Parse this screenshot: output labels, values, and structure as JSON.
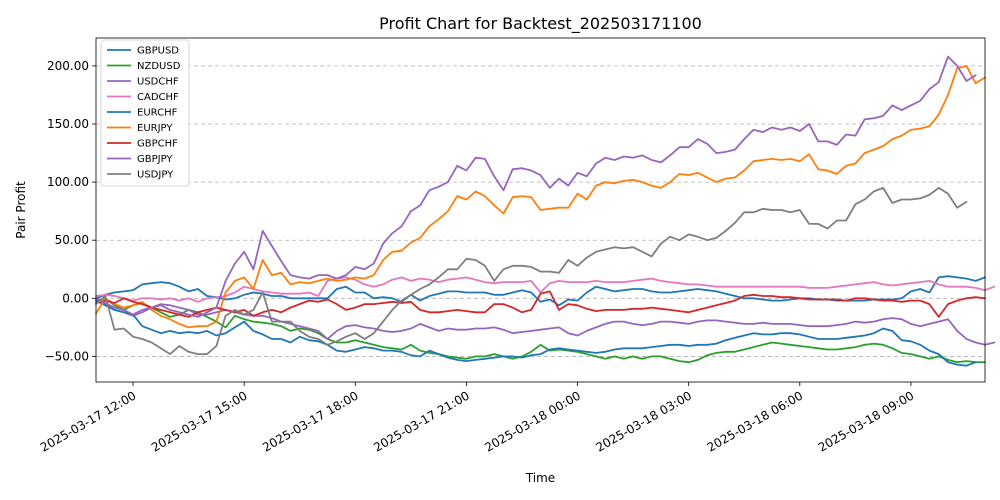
{
  "chart_data": {
    "type": "line",
    "title": "Profit Chart for Backtest_202503171100",
    "xlabel": "Time",
    "ylabel": "Pair Profit",
    "ylim": [
      -72,
      224
    ],
    "xlim": [
      -4,
      92
    ],
    "grid": "horizontal dashed",
    "legend_position": "top-left",
    "xticks": [
      {
        "x": 0,
        "label": "2025-03-17 12:00"
      },
      {
        "x": 12,
        "label": "2025-03-17 15:00"
      },
      {
        "x": 24,
        "label": "2025-03-17 18:00"
      },
      {
        "x": 36,
        "label": "2025-03-17 21:00"
      },
      {
        "x": 48,
        "label": "2025-03-18 00:00"
      },
      {
        "x": 60,
        "label": "2025-03-18 03:00"
      },
      {
        "x": 72,
        "label": "2025-03-18 06:00"
      },
      {
        "x": 84,
        "label": "2025-03-18 09:00"
      }
    ],
    "yticks": [
      {
        "y": -50,
        "label": "−50.00"
      },
      {
        "y": 0,
        "label": "0.00"
      },
      {
        "y": 50,
        "label": "50.00"
      },
      {
        "y": 100,
        "label": "100.00"
      },
      {
        "y": 150,
        "label": "150.00"
      },
      {
        "y": 200,
        "label": "200.00"
      }
    ],
    "x_start": -4,
    "series": [
      {
        "name": "GBPUSD",
        "color": "#1f77b4",
        "values": [
          0,
          3,
          5,
          6,
          7,
          12,
          13,
          14,
          13,
          10,
          6,
          8,
          2,
          1,
          -1,
          0,
          3,
          5,
          4,
          2,
          2,
          0,
          0,
          0,
          0,
          0,
          8,
          10,
          5,
          5,
          0,
          1,
          0,
          -3,
          3,
          -2,
          2,
          4,
          6,
          6,
          5,
          5,
          5,
          3,
          3,
          5,
          7,
          5,
          -3,
          -1,
          -6,
          -1,
          -2,
          5,
          10,
          8,
          6,
          7,
          8,
          8,
          6,
          5,
          5,
          6,
          7,
          8,
          7,
          6,
          4,
          2,
          0,
          0,
          -1,
          -2,
          -2,
          -1,
          0,
          0,
          -1,
          -1,
          -2,
          -2,
          -2,
          -2,
          -1,
          -1,
          -1,
          0,
          6,
          8,
          5,
          18,
          19,
          18,
          17,
          15,
          18
        ],
        "comment": ""
      },
      {
        "name": "NZDUSD",
        "color": "#2ca02c",
        "values": [
          -2,
          0,
          -6,
          -10,
          -6,
          -4,
          -8,
          -12,
          -16,
          -14,
          -10,
          -12,
          -16,
          -20,
          -25,
          -15,
          -18,
          -20,
          -21,
          -22,
          -24,
          -28,
          -26,
          -27,
          -30,
          -35,
          -38,
          -38,
          -36,
          -38,
          -40,
          -42,
          -43,
          -44,
          -40,
          -45,
          -47,
          -48,
          -50,
          -51,
          -52,
          -50,
          -50,
          -48,
          -50,
          -52,
          -50,
          -46,
          -40,
          -45,
          -44,
          -45,
          -46,
          -48,
          -50,
          -52,
          -50,
          -52,
          -50,
          -52,
          -50,
          -50,
          -52,
          -54,
          -55,
          -53,
          -49,
          -47,
          -46,
          -46,
          -44,
          -42,
          -40,
          -38,
          -39,
          -40,
          -41,
          -42,
          -43,
          -44,
          -44,
          -43,
          -42,
          -40,
          -39,
          -40,
          -43,
          -47,
          -48,
          -50,
          -52,
          -50,
          -53,
          -55,
          -54,
          -55,
          -55
        ]
      },
      {
        "name": "USDCHF",
        "color": "#9467bd",
        "values": [
          0,
          -5,
          -10,
          -12,
          -15,
          -12,
          -8,
          -5,
          -6,
          -8,
          -10,
          -14,
          -14,
          -12,
          -10,
          -12,
          -14,
          -15,
          -15,
          -17,
          -20,
          -22,
          -24,
          -26,
          -28,
          -35,
          -28,
          -24,
          -23,
          -25,
          -26,
          -28,
          -29,
          -28,
          -26,
          -22,
          -25,
          -28,
          -26,
          -27,
          -27,
          -26,
          -26,
          -25,
          -27,
          -30,
          -29,
          -28,
          -27,
          -26,
          -25,
          -30,
          -32,
          -28,
          -25,
          -22,
          -20,
          -20,
          -22,
          -23,
          -22,
          -20,
          -20,
          -21,
          -22,
          -20,
          -19,
          -19,
          -20,
          -21,
          -22,
          -22,
          -21,
          -22,
          -22,
          -22,
          -23,
          -24,
          -24,
          -24,
          -23,
          -22,
          -20,
          -21,
          -20,
          -18,
          -17,
          -18,
          -22,
          -24,
          -22,
          -20,
          -18,
          -28,
          -35,
          -38,
          -40,
          -38
        ]
      },
      {
        "name": "CADCHF",
        "color": "#e377c2",
        "values": [
          2,
          3,
          2,
          0,
          -2,
          0,
          0,
          -1,
          0,
          -2,
          0,
          -3,
          0,
          1,
          2,
          5,
          10,
          8,
          6,
          5,
          4,
          4,
          4,
          5,
          2,
          15,
          17,
          18,
          16,
          12,
          10,
          12,
          16,
          18,
          15,
          17,
          16,
          14,
          16,
          17,
          18,
          16,
          14,
          13,
          14,
          14,
          14,
          15,
          5,
          13,
          15,
          14,
          14,
          14,
          15,
          14,
          14,
          14,
          15,
          16,
          17,
          15,
          14,
          13,
          12,
          12,
          11,
          10,
          10,
          10,
          10,
          10,
          10,
          10,
          10,
          10,
          10,
          9,
          9,
          9,
          10,
          11,
          12,
          13,
          14,
          12,
          11,
          12,
          13,
          14,
          15,
          12,
          10,
          10,
          10,
          9,
          7,
          10
        ]
      },
      {
        "name": "EURCHF",
        "color": "#1f77b4",
        "values": [
          -2,
          -6,
          -10,
          -12,
          -14,
          -24,
          -27,
          -30,
          -28,
          -30,
          -29,
          -30,
          -28,
          -32,
          -30,
          -25,
          -20,
          -28,
          -31,
          -35,
          -35,
          -38,
          -33,
          -36,
          -37,
          -40,
          -45,
          -46,
          -44,
          -42,
          -43,
          -45,
          -45,
          -46,
          -49,
          -50,
          -45,
          -48,
          -51,
          -53,
          -54,
          -53,
          -52,
          -51,
          -50,
          -50,
          -51,
          -49,
          -48,
          -44,
          -43,
          -44,
          -45,
          -46,
          -47,
          -46,
          -44,
          -43,
          -43,
          -43,
          -42,
          -41,
          -40,
          -40,
          -41,
          -40,
          -40,
          -39,
          -36,
          -34,
          -32,
          -30,
          -31,
          -31,
          -30,
          -30,
          -31,
          -33,
          -35,
          -35,
          -35,
          -34,
          -33,
          -32,
          -30,
          -26,
          -28,
          -36,
          -37,
          -40,
          -45,
          -48,
          -55,
          -57,
          -58,
          -55
        ]
      },
      {
        "name": "EURJPY",
        "color": "#ff7f0e",
        "values": [
          -13,
          0,
          -5,
          -8,
          -6,
          -3,
          -10,
          -15,
          -18,
          -22,
          -25,
          -24,
          -24,
          -20,
          5,
          15,
          18,
          8,
          33,
          20,
          22,
          12,
          14,
          13,
          15,
          17,
          15,
          16,
          18,
          17,
          20,
          33,
          40,
          41,
          48,
          52,
          62,
          68,
          75,
          88,
          85,
          92,
          88,
          80,
          73,
          87,
          88,
          87,
          76,
          77,
          78,
          78,
          90,
          85,
          97,
          100,
          99,
          101,
          102,
          100,
          97,
          95,
          100,
          107,
          106,
          108,
          104,
          100,
          103,
          104,
          110,
          118,
          119,
          120,
          119,
          120,
          118,
          124,
          111,
          110,
          107,
          114,
          116,
          125,
          128,
          131,
          137,
          140,
          145,
          146,
          148,
          158,
          175,
          198,
          200,
          185,
          190
        ]
      },
      {
        "name": "GBPCHF",
        "color": "#d62728",
        "values": [
          -4,
          -2,
          -4,
          0,
          -3,
          -5,
          -8,
          -10,
          -12,
          -14,
          -16,
          -12,
          -10,
          -8,
          -10,
          -12,
          -10,
          -15,
          -12,
          -10,
          -12,
          -8,
          -5,
          -2,
          -3,
          -1,
          -5,
          -10,
          -8,
          -5,
          -5,
          -4,
          -3,
          -4,
          -3,
          -10,
          -12,
          -12,
          -11,
          -10,
          -11,
          -12,
          -12,
          -5,
          -5,
          -8,
          -12,
          -10,
          4,
          6,
          -10,
          -5,
          -6,
          -9,
          -11,
          -10,
          -10,
          -10,
          -9,
          -9,
          -8,
          -9,
          -10,
          -11,
          -12,
          -10,
          -8,
          -6,
          -4,
          -2,
          2,
          3,
          2,
          2,
          1,
          1,
          0,
          -1,
          -1,
          -1,
          -1,
          -2,
          0,
          0,
          -1,
          -2,
          -2,
          -3,
          -2,
          -2,
          -5,
          -16,
          -5,
          -2,
          0,
          1,
          0
        ]
      },
      {
        "name": "GBPJPY",
        "color": "#9467bd",
        "values": [
          0,
          -4,
          -8,
          -10,
          -14,
          -10,
          -8,
          -6,
          -10,
          -12,
          -14,
          -16,
          -12,
          -8,
          15,
          30,
          40,
          25,
          58,
          45,
          32,
          20,
          18,
          17,
          20,
          20,
          17,
          20,
          27,
          25,
          30,
          47,
          56,
          62,
          75,
          80,
          93,
          96,
          100,
          114,
          110,
          121,
          120,
          105,
          93,
          111,
          112,
          110,
          106,
          95,
          103,
          97,
          108,
          105,
          116,
          121,
          119,
          122,
          121,
          123,
          119,
          117,
          123,
          130,
          130,
          137,
          133,
          125,
          126,
          128,
          137,
          145,
          143,
          147,
          145,
          147,
          144,
          150,
          135,
          135,
          132,
          141,
          140,
          154,
          155,
          157,
          166,
          162,
          166,
          170,
          180,
          186,
          208,
          200,
          187,
          192
        ]
      },
      {
        "name": "USDJPY",
        "color": "#7f7f7f",
        "values": [
          -5,
          2,
          -27,
          -26,
          -33,
          -35,
          -38,
          -43,
          -48,
          -41,
          -46,
          -48,
          -48,
          -41,
          -15,
          -10,
          -14,
          -10,
          5,
          -20,
          -20,
          -20,
          -28,
          -33,
          -35,
          -40,
          -37,
          -33,
          -30,
          -35,
          -30,
          -20,
          -10,
          -2,
          3,
          8,
          12,
          18,
          25,
          25,
          34,
          33,
          28,
          15,
          25,
          28,
          28,
          27,
          23,
          23,
          22,
          33,
          28,
          35,
          40,
          42,
          44,
          43,
          44,
          40,
          36,
          47,
          53,
          50,
          55,
          53,
          50,
          52,
          58,
          65,
          74,
          74,
          77,
          76,
          76,
          74,
          76,
          64,
          64,
          60,
          67,
          67,
          81,
          85,
          92,
          95,
          82,
          85,
          85,
          86,
          89,
          95,
          90,
          78,
          83
        ]
      }
    ]
  }
}
